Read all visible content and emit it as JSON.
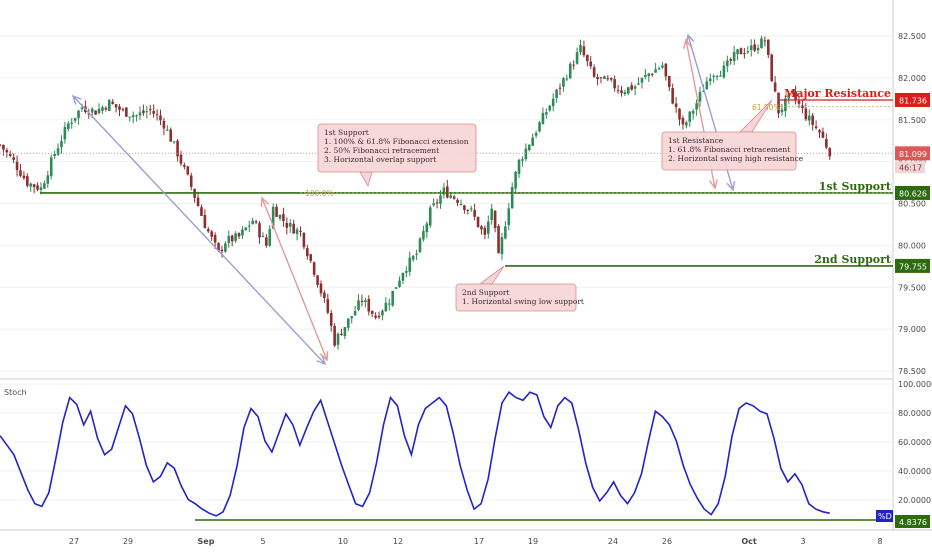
{
  "chart_data": [
    {
      "type": "candlestick",
      "panel": "price",
      "colors": {
        "up": "#2e8b57",
        "down": "#8b2f2f",
        "support": "#2e6b0e",
        "resistance": "#e01b1b",
        "fib_arrow": "#9b9fd6",
        "annot_arrow": "#e39a9a",
        "price_line": "#e28a8a",
        "note_fill": "#f6d6d6",
        "note_border": "#d88a8a",
        "last_price": "#e05656"
      },
      "y_ticks": [
        "82.500",
        "82.000",
        "81.500",
        "81.000",
        "80.500",
        "80.000",
        "79.500",
        "79.000",
        "78.500"
      ],
      "ylim": [
        78.45,
        82.7
      ],
      "x_labels": [
        "27",
        "29",
        "Sep",
        "5",
        "10",
        "12",
        "17",
        "19",
        "24",
        "26",
        "Oct",
        "3",
        "8"
      ],
      "levels": [
        {
          "name": "Major Resistance",
          "value": 81.736,
          "label": "81.736"
        },
        {
          "name": "1st Support",
          "value": 80.626,
          "label": "80.626"
        },
        {
          "name": "2nd Support",
          "value": 79.755,
          "label": "79.755"
        }
      ],
      "last_price": {
        "value": 81.099,
        "label": "81.099",
        "countdown": "46:17"
      },
      "fib_labels": [
        "100.0%",
        "61.80%"
      ],
      "annotations": [
        {
          "lines": [
            "1st Support",
            "1. 100% & 61.8% Fibonacci extension",
            "2. 50% Fibonacci retracement",
            "3. Horizontal overlap support"
          ]
        },
        {
          "lines": [
            "1st Resistance",
            "1. 61.8% Fibonacci retracement",
            "2. Horizontal swing high resistance"
          ]
        },
        {
          "lines": [
            "2nd Support",
            "1. Horizontal swing low support"
          ]
        }
      ],
      "close_path": [
        [
          0,
          81.2
        ],
        [
          4,
          81.0
        ],
        [
          8,
          80.75
        ],
        [
          12,
          80.68
        ],
        [
          16,
          81.1
        ],
        [
          20,
          81.45
        ],
        [
          24,
          81.65
        ],
        [
          28,
          81.6
        ],
        [
          32,
          81.7
        ],
        [
          36,
          81.6
        ],
        [
          40,
          81.55
        ],
        [
          44,
          81.62
        ],
        [
          48,
          81.45
        ],
        [
          52,
          81.1
        ],
        [
          56,
          80.7
        ],
        [
          60,
          80.25
        ],
        [
          64,
          79.9
        ],
        [
          66,
          80.05
        ],
        [
          70,
          80.1
        ],
        [
          74,
          80.3
        ],
        [
          78,
          80.0
        ],
        [
          80,
          80.45
        ],
        [
          84,
          80.25
        ],
        [
          88,
          80.15
        ],
        [
          92,
          79.7
        ],
        [
          96,
          79.2
        ],
        [
          98,
          78.85
        ],
        [
          102,
          79.1
        ],
        [
          106,
          79.35
        ],
        [
          110,
          79.15
        ],
        [
          114,
          79.35
        ],
        [
          118,
          79.7
        ],
        [
          122,
          79.9
        ],
        [
          126,
          80.4
        ],
        [
          130,
          80.65
        ],
        [
          134,
          80.55
        ],
        [
          138,
          80.4
        ],
        [
          142,
          80.1
        ],
        [
          144,
          80.45
        ],
        [
          146,
          79.85
        ],
        [
          150,
          80.7
        ],
        [
          152,
          81.0
        ],
        [
          156,
          81.3
        ],
        [
          160,
          81.6
        ],
        [
          164,
          81.9
        ],
        [
          168,
          82.2
        ],
        [
          170,
          82.35
        ],
        [
          174,
          82.0
        ],
        [
          178,
          81.95
        ],
        [
          182,
          81.85
        ],
        [
          186,
          81.9
        ],
        [
          190,
          82.05
        ],
        [
          194,
          82.15
        ],
        [
          196,
          81.85
        ],
        [
          200,
          81.4
        ],
        [
          204,
          81.7
        ],
        [
          208,
          82.05
        ],
        [
          212,
          82.1
        ],
        [
          216,
          82.3
        ],
        [
          220,
          82.35
        ],
        [
          224,
          82.45
        ],
        [
          226,
          82.0
        ],
        [
          228,
          81.6
        ],
        [
          232,
          81.8
        ],
        [
          236,
          81.55
        ],
        [
          240,
          81.35
        ],
        [
          243,
          81.12
        ]
      ],
      "x_max": 246
    },
    {
      "type": "line",
      "panel": "oscillator",
      "title": "Stoch",
      "series": [
        {
          "name": "%D"
        }
      ],
      "y_ticks": [
        "100.0000",
        "80.0000",
        "60.0000",
        "40.0000",
        "20.0000"
      ],
      "ylim": [
        0,
        100
      ],
      "last_value": {
        "value": 4.8376,
        "label": "4.8376"
      },
      "values": [
        62,
        55,
        48,
        35,
        22,
        12,
        10,
        20,
        45,
        72,
        90,
        85,
        70,
        80,
        60,
        48,
        52,
        68,
        84,
        78,
        60,
        40,
        28,
        32,
        42,
        38,
        25,
        15,
        12,
        8,
        5,
        3,
        6,
        18,
        40,
        68,
        82,
        76,
        58,
        50,
        64,
        78,
        70,
        55,
        68,
        80,
        88,
        72,
        56,
        40,
        26,
        12,
        10,
        20,
        42,
        70,
        90,
        84,
        62,
        48,
        70,
        82,
        86,
        90,
        84,
        64,
        40,
        22,
        8,
        12,
        30,
        60,
        86,
        94,
        90,
        88,
        94,
        92,
        76,
        68,
        84,
        90,
        86,
        66,
        42,
        24,
        14,
        20,
        28,
        18,
        12,
        20,
        34,
        58,
        80,
        76,
        70,
        58,
        40,
        26,
        16,
        8,
        4,
        12,
        32,
        62,
        82,
        86,
        84,
        80,
        78,
        60,
        38,
        28,
        34,
        26,
        12,
        8,
        6,
        5
      ]
    }
  ]
}
